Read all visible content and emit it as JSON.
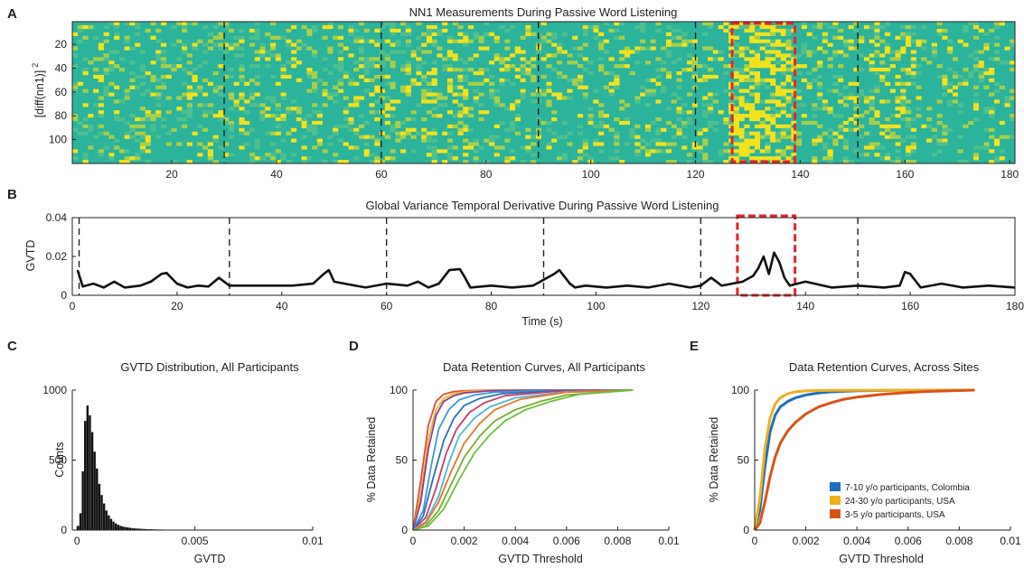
{
  "panel_labels": [
    "A",
    "B",
    "C",
    "D",
    "E"
  ],
  "chart_data": [
    {
      "type": "heatmap",
      "title": "NN1 Measurements During Passive Word Listening",
      "xlabel": "",
      "ylabel": "[diff(nn1)]",
      "ylabel_superscript": "2",
      "xlim": [
        1,
        181
      ],
      "ylim": [
        1,
        120
      ],
      "xticks": [
        "20",
        "40",
        "60",
        "80",
        "100",
        "120",
        "140",
        "160",
        "180"
      ],
      "yticks": [
        "20",
        "40",
        "60",
        "80",
        "100"
      ],
      "colormap": [
        "#2bb39c",
        "#4fbf8e",
        "#a7cf4a",
        "#f2e21d"
      ],
      "event_markers_x": [
        30,
        60,
        90,
        120,
        151
      ],
      "highlight_x": [
        127,
        139
      ],
      "highlight_color": "#e3242b"
    },
    {
      "type": "line",
      "title": "Global Variance Temporal Derivative During Passive Word Listening",
      "xlabel": "Time (s)",
      "ylabel": "GVTD",
      "xlim": [
        0,
        180
      ],
      "ylim": [
        0,
        0.04
      ],
      "xticks": [
        "0",
        "20",
        "40",
        "60",
        "80",
        "100",
        "120",
        "140",
        "160",
        "180"
      ],
      "yticks": [
        "0",
        "0.02",
        "0.04"
      ],
      "event_markers_x": [
        1.3,
        30,
        60,
        90,
        120,
        150
      ],
      "highlight_x": [
        127,
        138
      ],
      "highlight_color": "#e3242b",
      "series": [
        {
          "x": [
            1,
            2,
            4,
            6,
            8,
            10,
            13,
            15,
            17,
            18,
            20,
            22,
            24,
            26,
            28,
            30,
            34,
            38,
            42,
            46,
            48,
            49,
            50,
            52,
            56,
            60,
            64,
            66,
            68,
            70,
            72,
            74,
            75,
            76,
            80,
            84,
            88,
            92,
            93,
            95,
            96,
            98,
            102,
            106,
            110,
            114,
            118,
            120,
            122,
            124,
            126,
            128,
            130,
            131,
            132,
            133,
            134,
            135,
            136,
            137,
            140,
            145,
            150,
            155,
            158,
            159,
            160,
            162,
            166,
            170,
            175,
            180
          ],
          "y": [
            0.013,
            0.0045,
            0.006,
            0.004,
            0.007,
            0.004,
            0.005,
            0.007,
            0.011,
            0.0115,
            0.006,
            0.004,
            0.005,
            0.0045,
            0.009,
            0.005,
            0.005,
            0.005,
            0.005,
            0.006,
            0.011,
            0.013,
            0.007,
            0.006,
            0.004,
            0.006,
            0.005,
            0.007,
            0.004,
            0.006,
            0.013,
            0.0135,
            0.009,
            0.004,
            0.005,
            0.004,
            0.005,
            0.011,
            0.013,
            0.006,
            0.004,
            0.005,
            0.004,
            0.005,
            0.004,
            0.006,
            0.004,
            0.005,
            0.009,
            0.005,
            0.006,
            0.007,
            0.01,
            0.014,
            0.02,
            0.011,
            0.022,
            0.017,
            0.009,
            0.005,
            0.007,
            0.004,
            0.005,
            0.004,
            0.005,
            0.012,
            0.011,
            0.004,
            0.006,
            0.004,
            0.005,
            0.004
          ]
        }
      ]
    },
    {
      "type": "bar",
      "title": "GVTD Distribution, All Participants",
      "xlabel": "GVTD",
      "ylabel": "Counts",
      "xlim": [
        -0.0002,
        0.01
      ],
      "ylim": [
        0,
        1000
      ],
      "xticks": [
        "0",
        "0.005",
        "0.01"
      ],
      "yticks": [
        "0",
        "500",
        "1000"
      ],
      "bin_width": 0.0001,
      "bins_start": 0,
      "values": [
        30,
        120,
        420,
        780,
        890,
        820,
        700,
        560,
        440,
        330,
        250,
        190,
        140,
        105,
        80,
        60,
        48,
        38,
        30,
        25,
        22,
        19,
        16,
        14,
        12,
        11,
        10,
        9,
        8,
        7,
        6,
        6,
        5,
        5,
        4,
        4,
        4,
        3,
        3,
        3,
        3,
        3,
        2,
        2,
        2,
        2,
        2,
        2,
        2,
        2,
        2,
        2,
        2,
        1,
        1,
        1,
        1,
        1,
        1,
        1,
        1,
        1,
        1,
        1,
        1,
        1,
        1,
        1,
        1,
        1,
        1,
        1,
        1,
        1,
        1,
        1,
        1,
        1,
        1,
        1,
        1,
        1,
        1,
        1,
        1,
        1,
        1,
        1,
        1
      ]
    },
    {
      "type": "line",
      "title": "Data Retention Curves, All Participants",
      "xlabel": "GVTD Threshold",
      "ylabel": "% Data Retained",
      "xlim": [
        0,
        0.01
      ],
      "ylim": [
        0,
        100
      ],
      "xticks": [
        "0",
        "0.002",
        "0.004",
        "0.006",
        "0.008",
        "0.01"
      ],
      "yticks": [
        "0",
        "50",
        "100"
      ],
      "series": [
        {
          "color": "#e34a33",
          "x": [
            0,
            0.0003,
            0.0006,
            0.0009,
            0.0012,
            0.0016,
            0.002,
            0.003,
            0.005,
            0.0086
          ],
          "y": [
            0,
            35,
            75,
            92,
            97,
            99,
            99.5,
            100,
            100,
            100
          ]
        },
        {
          "color": "#f0b21a",
          "x": [
            0,
            0.0003,
            0.0006,
            0.0009,
            0.0012,
            0.0016,
            0.002,
            0.003,
            0.005,
            0.0086
          ],
          "y": [
            0,
            25,
            65,
            86,
            94,
            97.5,
            99,
            99.8,
            100,
            100
          ]
        },
        {
          "color": "#8a3fa0",
          "x": [
            0,
            0.0003,
            0.0006,
            0.0009,
            0.0012,
            0.0016,
            0.002,
            0.003,
            0.005,
            0.0086
          ],
          "y": [
            0,
            20,
            58,
            82,
            92,
            96,
            98,
            99.5,
            100,
            100
          ]
        },
        {
          "color": "#3a9bd9",
          "x": [
            0,
            0.0004,
            0.0007,
            0.001,
            0.0014,
            0.0018,
            0.0024,
            0.0032,
            0.005,
            0.0086
          ],
          "y": [
            0,
            14,
            45,
            72,
            86,
            93,
            96.5,
            98.5,
            99.6,
            100
          ]
        },
        {
          "color": "#2c6fb5",
          "x": [
            0,
            0.0004,
            0.0008,
            0.0012,
            0.0016,
            0.002,
            0.0026,
            0.0035,
            0.0055,
            0.0086
          ],
          "y": [
            0,
            10,
            38,
            64,
            80,
            89,
            94,
            97.5,
            99.4,
            100
          ]
        },
        {
          "color": "#c63d6a",
          "x": [
            0,
            0.0005,
            0.0009,
            0.0013,
            0.0017,
            0.0022,
            0.0028,
            0.0036,
            0.0055,
            0.0086
          ],
          "y": [
            0,
            9,
            30,
            55,
            72,
            84,
            91,
            96,
            99,
            100
          ]
        },
        {
          "color": "#4fb8d6",
          "x": [
            0,
            0.0005,
            0.001,
            0.0014,
            0.0018,
            0.0024,
            0.003,
            0.004,
            0.006,
            0.0086
          ],
          "y": [
            0,
            6,
            24,
            48,
            67,
            80,
            88,
            94.5,
            98.8,
            100
          ]
        },
        {
          "color": "#e8742a",
          "x": [
            0,
            0.0005,
            0.001,
            0.0015,
            0.002,
            0.0026,
            0.0032,
            0.0042,
            0.006,
            0.0086
          ],
          "y": [
            0,
            5,
            20,
            42,
            62,
            76,
            86,
            93.5,
            98.5,
            100
          ]
        },
        {
          "color": "#77ac30",
          "x": [
            0,
            0.0005,
            0.001,
            0.0015,
            0.002,
            0.0026,
            0.0032,
            0.004,
            0.005,
            0.006,
            0.0086
          ],
          "y": [
            0,
            3,
            14,
            33,
            52,
            67,
            78,
            86,
            92,
            96.5,
            100
          ]
        },
        {
          "color": "#6bbf3e",
          "x": [
            0,
            0.0006,
            0.0012,
            0.0018,
            0.0024,
            0.003,
            0.0036,
            0.0044,
            0.0054,
            0.0065,
            0.0086
          ],
          "y": [
            0,
            3,
            15,
            36,
            55,
            68,
            78,
            86,
            92,
            97,
            100
          ]
        }
      ]
    },
    {
      "type": "line",
      "title": "Data Retention Curves, Across Sites",
      "xlabel": "GVTD Threshold",
      "ylabel": "% Data Retained",
      "xlim": [
        0,
        0.01
      ],
      "ylim": [
        0,
        100
      ],
      "xticks": [
        "0",
        "0.002",
        "0.004",
        "0.006",
        "0.008",
        "0.01"
      ],
      "yticks": [
        "0",
        "50",
        "100"
      ],
      "legend_position": "bottom-right",
      "series": [
        {
          "name": "7-10 y/o participants, Colombia",
          "color": "#1f6fba",
          "x": [
            0,
            0.0002,
            0.0004,
            0.0006,
            0.0008,
            0.001,
            0.0013,
            0.0016,
            0.002,
            0.0025,
            0.003,
            0.004,
            0.0055,
            0.0086
          ],
          "y": [
            0,
            14,
            45,
            70,
            82,
            88,
            92,
            94.5,
            96.5,
            98,
            98.8,
            99.5,
            99.8,
            100
          ]
        },
        {
          "name": "24-30 y/o participants, USA",
          "color": "#edb120",
          "x": [
            0,
            0.0002,
            0.0004,
            0.0006,
            0.0008,
            0.001,
            0.0013,
            0.0016,
            0.002,
            0.003,
            0.0086
          ],
          "y": [
            0,
            22,
            58,
            80,
            90,
            94.5,
            97.5,
            98.8,
            99.5,
            99.9,
            100
          ]
        },
        {
          "name": "3-5 y/o participants, USA",
          "color": "#d95319",
          "x": [
            0,
            0.0002,
            0.0004,
            0.0006,
            0.0008,
            0.001,
            0.0013,
            0.0016,
            0.002,
            0.0025,
            0.003,
            0.0035,
            0.004,
            0.005,
            0.006,
            0.007,
            0.0086
          ],
          "y": [
            0,
            5,
            20,
            38,
            52,
            62,
            71,
            77,
            83,
            88,
            91,
            93.5,
            95,
            97,
            98.3,
            99.2,
            100
          ]
        }
      ]
    }
  ]
}
